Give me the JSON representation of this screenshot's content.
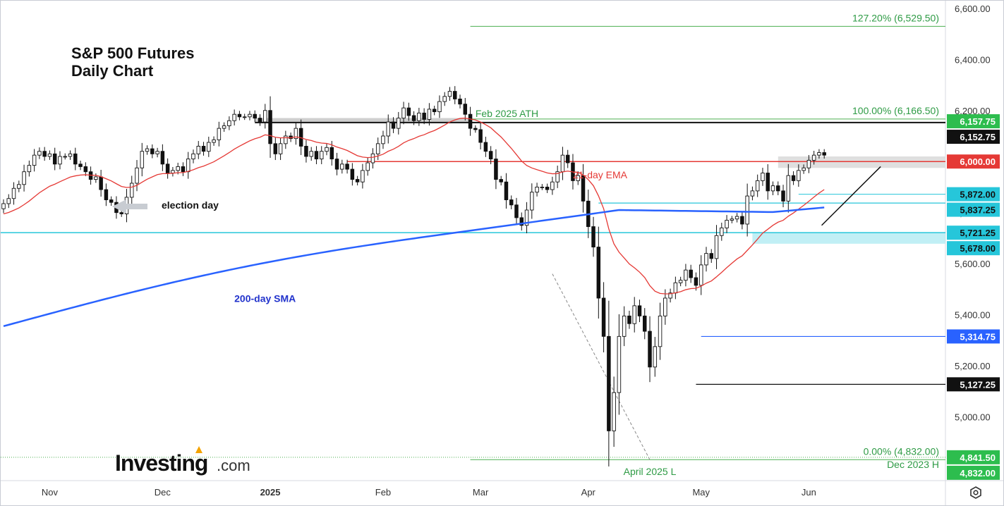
{
  "chart_data": {
    "type": "candlestick",
    "title": "S&P 500 Futures",
    "subtitle": "Daily Chart",
    "ylim": [
      4750,
      6630
    ],
    "y_ticks": [
      5000,
      5200,
      5400,
      5600,
      5800,
      6000,
      6200,
      6400,
      6600
    ],
    "y_tick_labels": [
      "5,000.00",
      "5,200.00",
      "5,400.00",
      "5,600.00",
      "5,800.00",
      "6,000.00",
      "6,200.00",
      "6,400.00",
      "6,600.00"
    ],
    "x_ticks": [
      {
        "label": "Nov",
        "day": 9,
        "bold": false
      },
      {
        "label": "Dec",
        "day": 31,
        "bold": false
      },
      {
        "label": "2025",
        "day": 52,
        "bold": true
      },
      {
        "label": "Feb",
        "day": 74,
        "bold": false
      },
      {
        "label": "Mar",
        "day": 93,
        "bold": false
      },
      {
        "label": "Apr",
        "day": 114,
        "bold": false
      },
      {
        "label": "May",
        "day": 136,
        "bold": false
      },
      {
        "label": "Jun",
        "day": 157,
        "bold": false
      }
    ],
    "ohlc_base_close": 5835,
    "close_moves": [
      0,
      20,
      40,
      15,
      50,
      25,
      40,
      15,
      -20,
      10,
      -40,
      30,
      0,
      10,
      -40,
      -10,
      -20,
      -30,
      10,
      -50,
      -40,
      -10,
      -40,
      -5,
      65,
      55,
      60,
      65,
      10,
      -20,
      10,
      -50,
      -35,
      10,
      15,
      -20,
      50,
      20,
      30,
      -20,
      35,
      10,
      45,
      10,
      20,
      25,
      -10,
      0,
      10,
      -15,
      -15,
      45,
      -130,
      -40,
      40,
      30,
      -10,
      40,
      -70,
      -40,
      20,
      -30,
      30,
      15,
      -45,
      -40,
      20,
      -20,
      -40,
      -10,
      45,
      30,
      35,
      40,
      30,
      55,
      -25,
      40,
      40,
      -30,
      -20,
      30,
      -25,
      40,
      -10,
      40,
      20,
      20,
      -30,
      -20,
      -40,
      -55,
      -5,
      -50,
      -35,
      -30,
      -80,
      -10,
      -70,
      -20,
      -50,
      -30,
      60,
      70,
      20,
      0,
      -10,
      30,
      40,
      65,
      -30,
      -70,
      20,
      -100,
      -100,
      -80,
      -200,
      -150,
      -370,
      150,
      220,
      80,
      -30,
      70,
      -40,
      -60,
      -140,
      80,
      120,
      70,
      20,
      40,
      10,
      40,
      -30,
      -30,
      80,
      45,
      -20,
      90,
      30,
      30,
      5,
      10,
      -30,
      110,
      20,
      40,
      30,
      -70,
      20,
      -20,
      -40,
      100,
      -20,
      40,
      10,
      30,
      20,
      10,
      -10
    ],
    "fib_levels": [
      {
        "label": "127.20% (6,529.50)",
        "value": 6529.5
      },
      {
        "label": "100.00% (6,166.50)",
        "value": 6166.5
      },
      {
        "label": "0.00% (4,832.00)",
        "value": 4832.0
      }
    ],
    "price_labels": [
      {
        "text": "6,157.75",
        "value": 6157.75,
        "color": "#2dbd4e"
      },
      {
        "text": "6,152.75",
        "value": 6152.75,
        "color": "#111111"
      },
      {
        "text": "6,000.00",
        "value": 6000.0,
        "color": "#e53935"
      },
      {
        "text": "5,872.00",
        "value": 5872.0,
        "color": "#26c6da"
      },
      {
        "text": "5,837.25",
        "value": 5837.25,
        "color": "#26c6da"
      },
      {
        "text": "5,721.25",
        "value": 5721.25,
        "color": "#26c6da"
      },
      {
        "text": "5,678.00",
        "value": 5678.0,
        "color": "#26c6da"
      },
      {
        "text": "5,314.75",
        "value": 5314.75,
        "color": "#2962ff"
      },
      {
        "text": "5,127.25",
        "value": 5127.25,
        "color": "#111111"
      },
      {
        "text": "4,841.50",
        "value": 4841.5,
        "color": "#2dbd4e"
      },
      {
        "text": "4,832.00",
        "value": 4832.0,
        "color": "#2dbd4e"
      }
    ],
    "annotations": {
      "feb_ath": "Feb 2025 ATH",
      "ema": "21-day EMA",
      "sma": "200-day SMA",
      "election": "election day",
      "april_low": "April 2025 L",
      "dec_2023": "Dec 2023 H"
    },
    "colors": {
      "ema": "#e53935",
      "sma": "#2962ff",
      "fib": "#4caf50",
      "support": "#26c6da",
      "zone": "#b2ebf2"
    }
  },
  "branding": {
    "logo_word": "Investing",
    "logo_suffix": ".com"
  },
  "settings_icon": "gear-icon"
}
